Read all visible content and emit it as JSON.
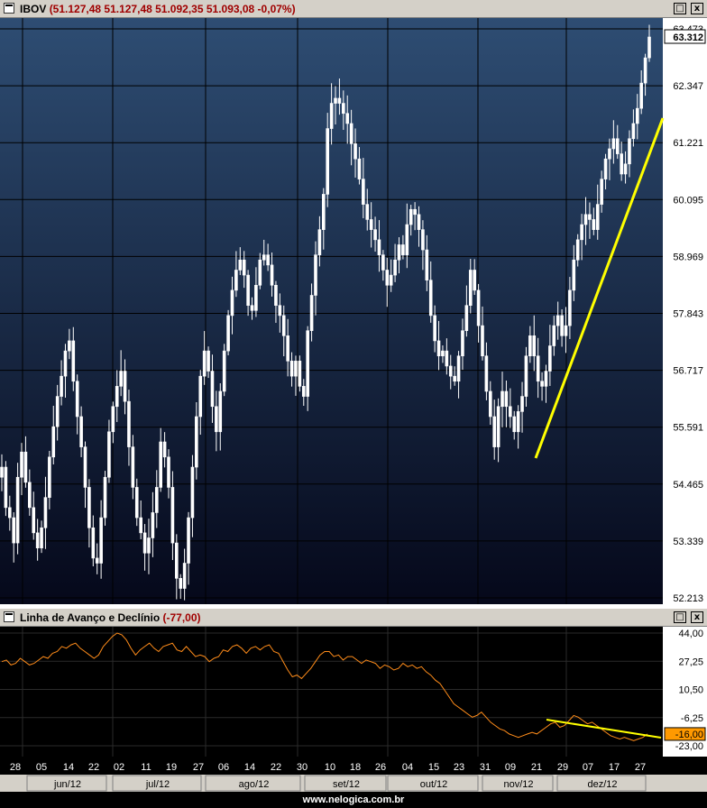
{
  "main_panel": {
    "symbol": "IBOV",
    "values_text": "(51.127,48  51.127,48  51.092,35  51.093,08  -0,07%)",
    "last_value": "63.312",
    "background_top": "#2e4d73",
    "background_bottom": "#05081a",
    "candle_color": "#ffffff",
    "trendline_color": "#ffff00"
  },
  "sub_panel": {
    "title": "Linha de Avanço e Declínio",
    "value_text": "(-77,00)",
    "last_value": "-16,00",
    "line_color": "#ff8c1a",
    "trendline_color": "#ffff00"
  },
  "window_buttons": {
    "restore": "□",
    "close": "x"
  },
  "footer": {
    "text": "www.nelogica.com.br"
  },
  "chart_data": [
    {
      "type": "candlestick",
      "series_name": "IBOV",
      "ylim": [
        52213,
        63473
      ],
      "y_ticks": [
        "63.473",
        "62.347",
        "61.221",
        "60.095",
        "58.969",
        "57.843",
        "56.717",
        "55.591",
        "54.465",
        "53.339",
        "52.213"
      ],
      "x_ticks": [
        "28",
        "05",
        "14",
        "22",
        "02",
        "11",
        "19",
        "27",
        "06",
        "14",
        "22",
        "30",
        "10",
        "18",
        "26",
        "04",
        "15",
        "23",
        "31",
        "09",
        "21",
        "29",
        "07",
        "17",
        "27"
      ],
      "months": [
        "jun/12",
        "jul/12",
        "ago/12",
        "set/12",
        "out/12",
        "nov/12",
        "dez/12"
      ],
      "close_path": [
        54800,
        54000,
        53800,
        53300,
        54600,
        55100,
        54500,
        54000,
        53500,
        53200,
        53600,
        54200,
        55000,
        55600,
        56200,
        56600,
        57100,
        57300,
        56500,
        55800,
        55200,
        54400,
        53600,
        53000,
        52900,
        53800,
        54600,
        55500,
        56000,
        56400,
        56700,
        56100,
        55200,
        54400,
        53800,
        53500,
        53100,
        53400,
        53900,
        54400,
        55300,
        55000,
        54400,
        53300,
        52600,
        52400,
        52900,
        53800,
        54800,
        55800,
        56600,
        57100,
        56700,
        56000,
        55500,
        56300,
        57100,
        57800,
        58300,
        58700,
        58900,
        58600,
        58000,
        57900,
        58400,
        58900,
        59000,
        58800,
        58400,
        58000,
        57800,
        57400,
        56900,
        56600,
        56900,
        56400,
        56200,
        57500,
        58200,
        59000,
        59500,
        60200,
        61500,
        62000,
        62100,
        62000,
        61800,
        61600,
        61200,
        60900,
        60500,
        60000,
        59700,
        59500,
        59300,
        59000,
        58700,
        58400,
        58600,
        58900,
        59200,
        59000,
        59600,
        59900,
        59800,
        59500,
        59100,
        58500,
        57800,
        57300,
        57000,
        57100,
        56800,
        56600,
        56500,
        57000,
        57500,
        58000,
        58700,
        58300,
        57600,
        57000,
        56300,
        55800,
        55200,
        56000,
        56300,
        56000,
        55800,
        55500,
        55900,
        56200,
        57000,
        57400,
        57000,
        56500,
        56400,
        56700,
        57200,
        57600,
        57800,
        57400,
        57600,
        58300,
        58900,
        59300,
        59600,
        59800,
        59700,
        59500,
        60000,
        60500,
        60900,
        61100,
        61300,
        61000,
        60600,
        60800,
        61300,
        61600,
        61900,
        62400,
        62900,
        63312
      ]
    },
    {
      "type": "line",
      "series_name": "Linha de Avanço e Declínio",
      "ylim": [
        -23,
        44
      ],
      "y_ticks": [
        "44,00",
        "27,25",
        "10,50",
        "-6,25",
        "-23,00"
      ],
      "values": [
        27,
        28,
        25,
        26,
        29,
        27,
        25,
        26,
        28,
        30,
        29,
        32,
        33,
        36,
        35,
        37,
        38,
        35,
        33,
        31,
        29,
        31,
        36,
        39,
        42,
        44,
        43,
        40,
        35,
        31,
        34,
        36,
        38,
        35,
        33,
        36,
        37,
        38,
        34,
        33,
        36,
        33,
        30,
        31,
        30,
        27,
        29,
        30,
        34,
        33,
        36,
        37,
        35,
        32,
        35,
        36,
        34,
        36,
        37,
        33,
        32,
        27,
        22,
        18,
        19,
        17,
        20,
        23,
        27,
        31,
        33,
        33,
        30,
        31,
        28,
        30,
        30,
        28,
        26,
        28,
        27,
        26,
        23,
        25,
        24,
        22,
        23,
        26,
        24,
        25,
        23,
        24,
        21,
        19,
        16,
        14,
        10,
        6,
        2,
        0,
        -2,
        -4,
        -6,
        -5,
        -3,
        -6,
        -9,
        -11,
        -13,
        -14,
        -16,
        -17,
        -18,
        -17,
        -16,
        -15,
        -16,
        -14,
        -12,
        -10,
        -9,
        -12,
        -11,
        -8,
        -5,
        -6,
        -8,
        -10,
        -9,
        -11,
        -13,
        -15,
        -17,
        -18,
        -19,
        -18,
        -19,
        -20,
        -19,
        -18,
        -16
      ]
    }
  ]
}
